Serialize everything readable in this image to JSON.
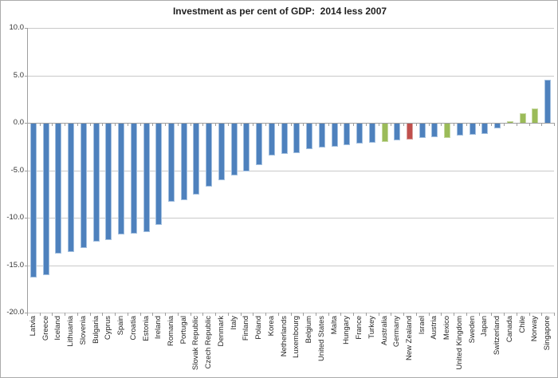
{
  "chart_data": {
    "type": "bar",
    "title": "Investment as per cent of GDP:  2014 less 2007",
    "xlabel": "",
    "ylabel": "",
    "ylim": [
      -20,
      10
    ],
    "ytick_labels": [
      "10.0",
      "5.0",
      "0.0",
      "-5.0",
      "-10.0",
      "-15.0",
      "-20.0"
    ],
    "ytick_values": [
      10,
      5,
      0,
      -5,
      -10,
      -15,
      -20
    ],
    "grid": true,
    "legend": "none",
    "categories": [
      "Latvia",
      "Greece",
      "Iceland",
      "Lithuania",
      "Slovenia",
      "Bulgaria",
      "Cyprus",
      "Spain",
      "Croatia",
      "Estonia",
      "Ireland",
      "Romania",
      "Portugal",
      "Slovak Republic",
      "Czech Republic",
      "Denmark",
      "Italy",
      "Finland",
      "Poland",
      "Korea",
      "Netherlands",
      "Luxembourg",
      "Belgium",
      "United States",
      "Malta",
      "Hungary",
      "France",
      "Turkey",
      "Australia",
      "Germany",
      "New Zealand",
      "Israel",
      "Austria",
      "Mexico",
      "United Kingdom",
      "Sweden",
      "Japan",
      "Switzerland",
      "Canada",
      "Chile",
      "Norway",
      "Singapore"
    ],
    "values": [
      -16.2,
      -16.0,
      -13.7,
      -13.5,
      -13.1,
      -12.4,
      -12.3,
      -11.7,
      -11.6,
      -11.4,
      -10.7,
      -8.2,
      -8.1,
      -7.5,
      -6.6,
      -6.0,
      -5.5,
      -5.0,
      -4.4,
      -3.4,
      -3.2,
      -3.1,
      -2.7,
      -2.5,
      -2.4,
      -2.3,
      -2.1,
      -2.0,
      -1.9,
      -1.8,
      -1.7,
      -1.5,
      -1.4,
      -1.5,
      -1.3,
      -1.2,
      -1.1,
      -0.5,
      0.2,
      1.0,
      1.5,
      4.5
    ],
    "colors": [
      "blue",
      "blue",
      "blue",
      "blue",
      "blue",
      "blue",
      "blue",
      "blue",
      "blue",
      "blue",
      "blue",
      "blue",
      "blue",
      "blue",
      "blue",
      "blue",
      "blue",
      "blue",
      "blue",
      "blue",
      "blue",
      "blue",
      "blue",
      "blue",
      "blue",
      "blue",
      "blue",
      "blue",
      "green",
      "blue",
      "red",
      "blue",
      "blue",
      "green",
      "blue",
      "blue",
      "blue",
      "blue",
      "green",
      "green",
      "green",
      "blue"
    ],
    "palette": {
      "blue": {
        "fill": "#4E81BD",
        "edge": "#A3C0E0"
      },
      "green": {
        "fill": "#9BBB59",
        "edge": "#C6D9A0"
      },
      "red": {
        "fill": "#C0504D",
        "edge": "#D9A09D"
      }
    },
    "gridline_color": "#c9c9c9",
    "axis_color": "#9e9e9e",
    "title_color": "#1f1f1f",
    "label_color": "#262626"
  }
}
